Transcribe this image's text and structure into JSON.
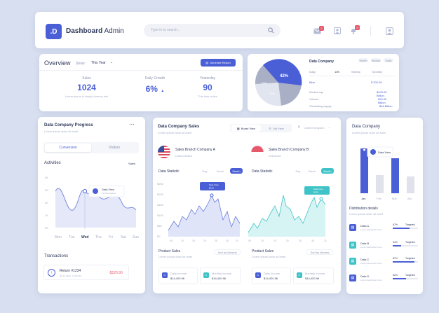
{
  "header": {
    "logo": ".D",
    "title": "Dashboard",
    "title2": "Admin",
    "search_placeholder": "Type in to search...",
    "mail_badge": "2",
    "bell_badge": "5"
  },
  "overview": {
    "title": "Overview",
    "show_label": "Show:",
    "show_value": "This Year",
    "generate": "Generate Report",
    "stats": [
      {
        "label": "Sales",
        "value": "1024",
        "desc": "Lorem ipsum is simply dummy text"
      },
      {
        "label": "Daily Growth",
        "value": "6%",
        "desc": ""
      },
      {
        "label": "Yesterday",
        "value": "90",
        "desc": "This time active"
      }
    ]
  },
  "pie": {
    "title": "Data Company",
    "slice1": "42%",
    "slice2": "30%",
    "slice3": "28%",
    "pills": [
      "Month",
      "Weekly",
      "Daily"
    ],
    "table_head": [
      "Daily",
      "10K",
      "Weekly",
      "Monthly"
    ],
    "rows": [
      {
        "label": "Blue",
        "val": "$ 200.00"
      },
      {
        "label": "Market cap",
        "val": "$400.00 Billion"
      },
      {
        "label": "Volume",
        "val": "$20.00 Billion"
      },
      {
        "label": "Circulating supply",
        "val": "$16 Billion"
      }
    ]
  },
  "progress": {
    "title": "Data Company Progress",
    "subtitle": "Lorem ipsum dolor sit amet",
    "tab_active": "Conversion",
    "tab2": "Visitors",
    "activities": "Activities",
    "sales": "Sales",
    "yticks": [
      "4K",
      "3K",
      "2K",
      "1K",
      "0K"
    ],
    "days": [
      "Mon",
      "Tue",
      "Wed",
      "Thu",
      "Fri",
      "Sat",
      "Sun"
    ],
    "tip_title": "Data View",
    "tip_sub": "Far Illuminated",
    "transactions": "Transactions",
    "tx_title": "Return #1234",
    "tx_date": "20 Jul 2020 - 11:00 AM",
    "tx_amount": "-$120.90"
  },
  "sales": {
    "title": "Data Company Sales",
    "subtitle": "Lorem ipsum dolor sit amet",
    "board": "Board View",
    "list": "List View",
    "country": "United Kingdom",
    "companies": [
      {
        "name": "Sales Branch Company A",
        "loc": "United States"
      },
      {
        "name": "Sales Branch Company B",
        "loc": "Indonesia"
      }
    ],
    "stat": "Data Statistic",
    "periods": [
      "Day",
      "Week",
      "Month"
    ],
    "yticks": [
      "$250",
      "$200",
      "$150",
      "$100",
      "$50",
      "$0"
    ],
    "xticks": [
      "05",
      "10",
      "15",
      "20",
      "25",
      "30",
      "31"
    ],
    "tip": "Data View",
    "tip_val": "$420",
    "product": "Product Sales",
    "product_sub": "Lorem ipsum dolor sit amet",
    "sort": "Sort by Newest",
    "income": [
      {
        "label": "Daily Income",
        "value": "$14,420.96"
      },
      {
        "label": "Monthly Income",
        "value": "$14,420.96"
      },
      {
        "label": "Daily Income",
        "value": "$14,420.96"
      },
      {
        "label": "Monthly Income",
        "value": "$14,420.96"
      }
    ]
  },
  "right": {
    "title": "Data Company",
    "subtitle": "Lorem ipsum dolor sit amet",
    "tip": "Data View",
    "months": [
      "Jan",
      "Feb",
      "Mar",
      "Apr"
    ],
    "dist": "Distribution details",
    "dist_sub": "Lorem ipsum dolor sit amet",
    "items": [
      {
        "name": "Data A",
        "desc": "Lorem description here",
        "pct": "67%",
        "target": "Targeted"
      },
      {
        "name": "Data B",
        "desc": "Lorem description here",
        "pct": "34%",
        "target": "Targeted"
      },
      {
        "name": "Data C",
        "desc": "Lorem description here",
        "pct": "87%",
        "target": "Targeted"
      },
      {
        "name": "Data D",
        "desc": "Lorem description here",
        "pct": "52%",
        "target": "Targeted"
      }
    ]
  }
}
